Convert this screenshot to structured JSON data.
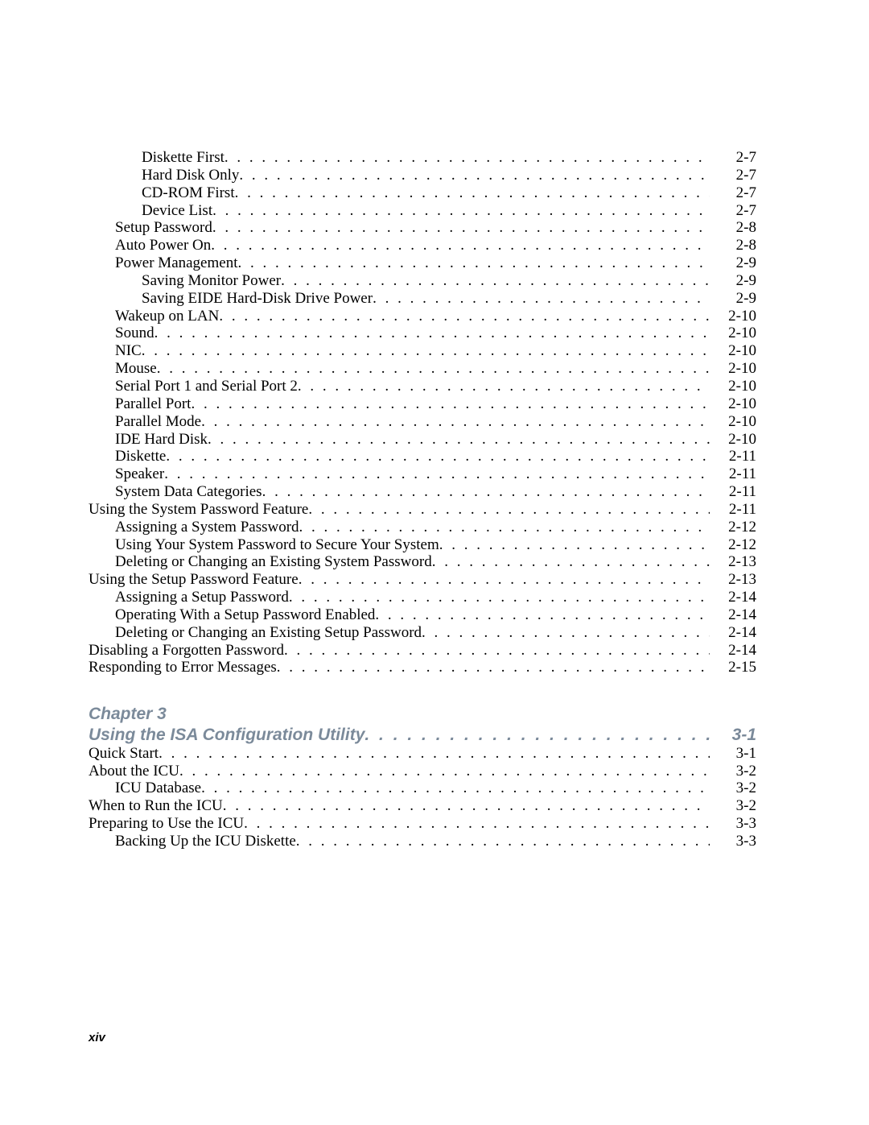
{
  "page_footer": "xiv",
  "colors": {
    "heading": "#7b8a9a",
    "text": "#000000",
    "background": "#ffffff"
  },
  "toc1": [
    {
      "indent": 2,
      "title": "Diskette First",
      "page": "2-7"
    },
    {
      "indent": 2,
      "title": "Hard Disk Only",
      "page": "2-7"
    },
    {
      "indent": 2,
      "title": "CD-ROM First",
      "page": "2-7"
    },
    {
      "indent": 2,
      "title": "Device List",
      "page": "2-7"
    },
    {
      "indent": 1,
      "title": "Setup Password",
      "page": "2-8"
    },
    {
      "indent": 1,
      "title": "Auto Power On",
      "page": "2-8"
    },
    {
      "indent": 1,
      "title": "Power Management",
      "page": "2-9"
    },
    {
      "indent": 2,
      "title": "Saving Monitor Power",
      "page": "2-9"
    },
    {
      "indent": 2,
      "title": "Saving EIDE Hard-Disk Drive Power",
      "page": "2-9"
    },
    {
      "indent": 1,
      "title": "Wakeup on LAN",
      "page": "2-10"
    },
    {
      "indent": 1,
      "title": "Sound",
      "page": "2-10"
    },
    {
      "indent": 1,
      "title": "NIC",
      "page": "2-10"
    },
    {
      "indent": 1,
      "title": "Mouse",
      "page": "2-10"
    },
    {
      "indent": 1,
      "title": "Serial Port 1 and Serial Port 2",
      "page": "2-10"
    },
    {
      "indent": 1,
      "title": "Parallel Port",
      "page": "2-10"
    },
    {
      "indent": 1,
      "title": "Parallel Mode",
      "page": "2-10"
    },
    {
      "indent": 1,
      "title": "IDE Hard Disk",
      "page": "2-10"
    },
    {
      "indent": 1,
      "title": "Diskette",
      "page": "2-11"
    },
    {
      "indent": 1,
      "title": "Speaker",
      "page": "2-11"
    },
    {
      "indent": 1,
      "title": "System Data Categories",
      "page": "2-11"
    },
    {
      "indent": 0,
      "title": "Using the System Password Feature",
      "page": "2-11"
    },
    {
      "indent": 1,
      "title": "Assigning a System Password",
      "page": "2-12"
    },
    {
      "indent": 1,
      "title": "Using Your System Password to Secure Your System",
      "page": "2-12"
    },
    {
      "indent": 1,
      "title": "Deleting or Changing an Existing System Password",
      "page": "2-13"
    },
    {
      "indent": 0,
      "title": "Using the Setup Password Feature",
      "page": "2-13"
    },
    {
      "indent": 1,
      "title": "Assigning a Setup Password",
      "page": "2-14"
    },
    {
      "indent": 1,
      "title": "Operating With a Setup Password Enabled",
      "page": "2-14"
    },
    {
      "indent": 1,
      "title": "Deleting or Changing an Existing Setup Password",
      "page": "2-14"
    },
    {
      "indent": 0,
      "title": "Disabling a Forgotten Password",
      "page": "2-14"
    },
    {
      "indent": 0,
      "title": "Responding to Error Messages",
      "page": "2-15"
    }
  ],
  "chapter": {
    "label": "Chapter 3",
    "title": "Using the ISA Configuration Utility",
    "page": "3-1"
  },
  "toc2": [
    {
      "indent": 0,
      "title": "Quick Start",
      "page": "3-1"
    },
    {
      "indent": 0,
      "title": "About the ICU",
      "page": "3-2"
    },
    {
      "indent": 1,
      "title": "ICU Database",
      "page": "3-2"
    },
    {
      "indent": 0,
      "title": "When to Run the ICU",
      "page": "3-2"
    },
    {
      "indent": 0,
      "title": "Preparing to Use the ICU",
      "page": "3-3"
    },
    {
      "indent": 1,
      "title": "Backing Up the ICU Diskette",
      "page": "3-3"
    }
  ]
}
